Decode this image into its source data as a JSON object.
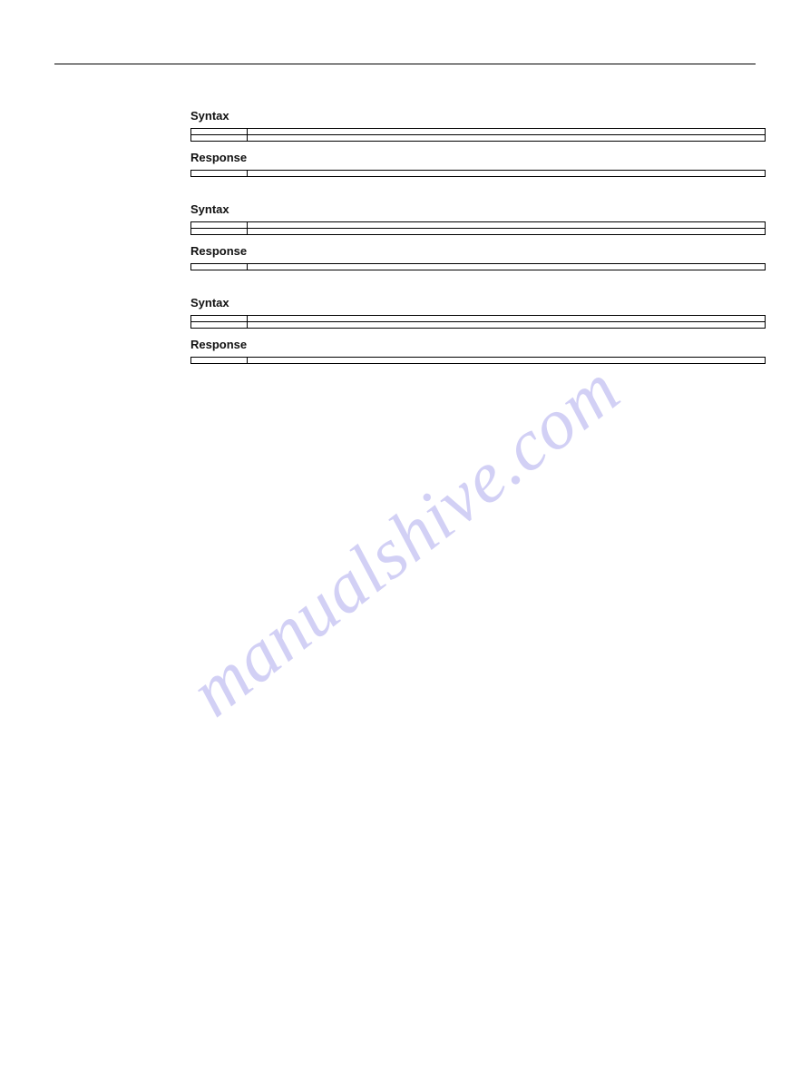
{
  "header": {
    "left": "",
    "right": ""
  },
  "watermark": "manualshive.com",
  "pagenum": "",
  "labels": {
    "syntax": "Syntax",
    "response": "Response"
  },
  "sections": [
    {
      "title": "",
      "desc": "",
      "syntax": [
        [
          "",
          ""
        ],
        [
          "",
          ""
        ]
      ],
      "response": [
        [
          "",
          ""
        ]
      ],
      "note": ""
    },
    {
      "title": "",
      "desc": "",
      "syntax": [
        [
          "",
          ""
        ],
        [
          "",
          ""
        ]
      ],
      "response": [
        [
          "",
          ""
        ]
      ],
      "note": ""
    },
    {
      "title": "",
      "desc": "",
      "syntax": [
        [
          "",
          ""
        ],
        [
          "",
          ""
        ]
      ],
      "response": [
        [
          "",
          ""
        ]
      ],
      "note": ""
    }
  ]
}
